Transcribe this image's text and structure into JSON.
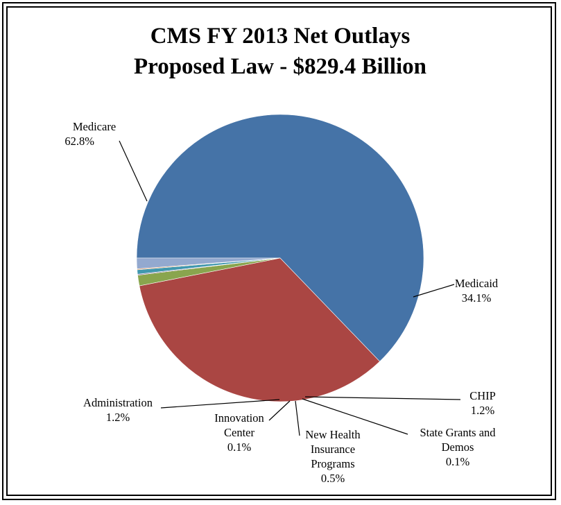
{
  "chart_data": {
    "type": "pie",
    "title": [
      "CMS FY 2013 Net Outlays",
      "Proposed Law - $829.4 Billion"
    ],
    "slices": [
      {
        "name": "Medicare",
        "label_lines": [
          "Medicare",
          "62.8%"
        ],
        "value": 62.8,
        "color": "#4573a7"
      },
      {
        "name": "Medicaid",
        "label_lines": [
          "Medicaid",
          "34.1%"
        ],
        "value": 34.1,
        "color": "#aa4643"
      },
      {
        "name": "CHIP",
        "label_lines": [
          "CHIP",
          "1.2%"
        ],
        "value": 1.2,
        "color": "#89a54e"
      },
      {
        "name": "State Grants and Demos",
        "label_lines": [
          "State Grants and",
          "Demos",
          "0.1%"
        ],
        "value": 0.1,
        "color": "#71588f"
      },
      {
        "name": "New Health Insurance Programs",
        "label_lines": [
          "New Health",
          "Insurance",
          "Programs",
          "0.5%"
        ],
        "value": 0.5,
        "color": "#4198af"
      },
      {
        "name": "Innovation Center",
        "label_lines": [
          "Innovation",
          "Center",
          "0.1%"
        ],
        "value": 0.1,
        "color": "#db843d"
      },
      {
        "name": "Administration",
        "label_lines": [
          "Administration",
          "1.2%"
        ],
        "value": 1.2,
        "color": "#93a9cf"
      }
    ],
    "start_angle_deg": 180,
    "direction": "counterclockwise",
    "legend": "none"
  }
}
